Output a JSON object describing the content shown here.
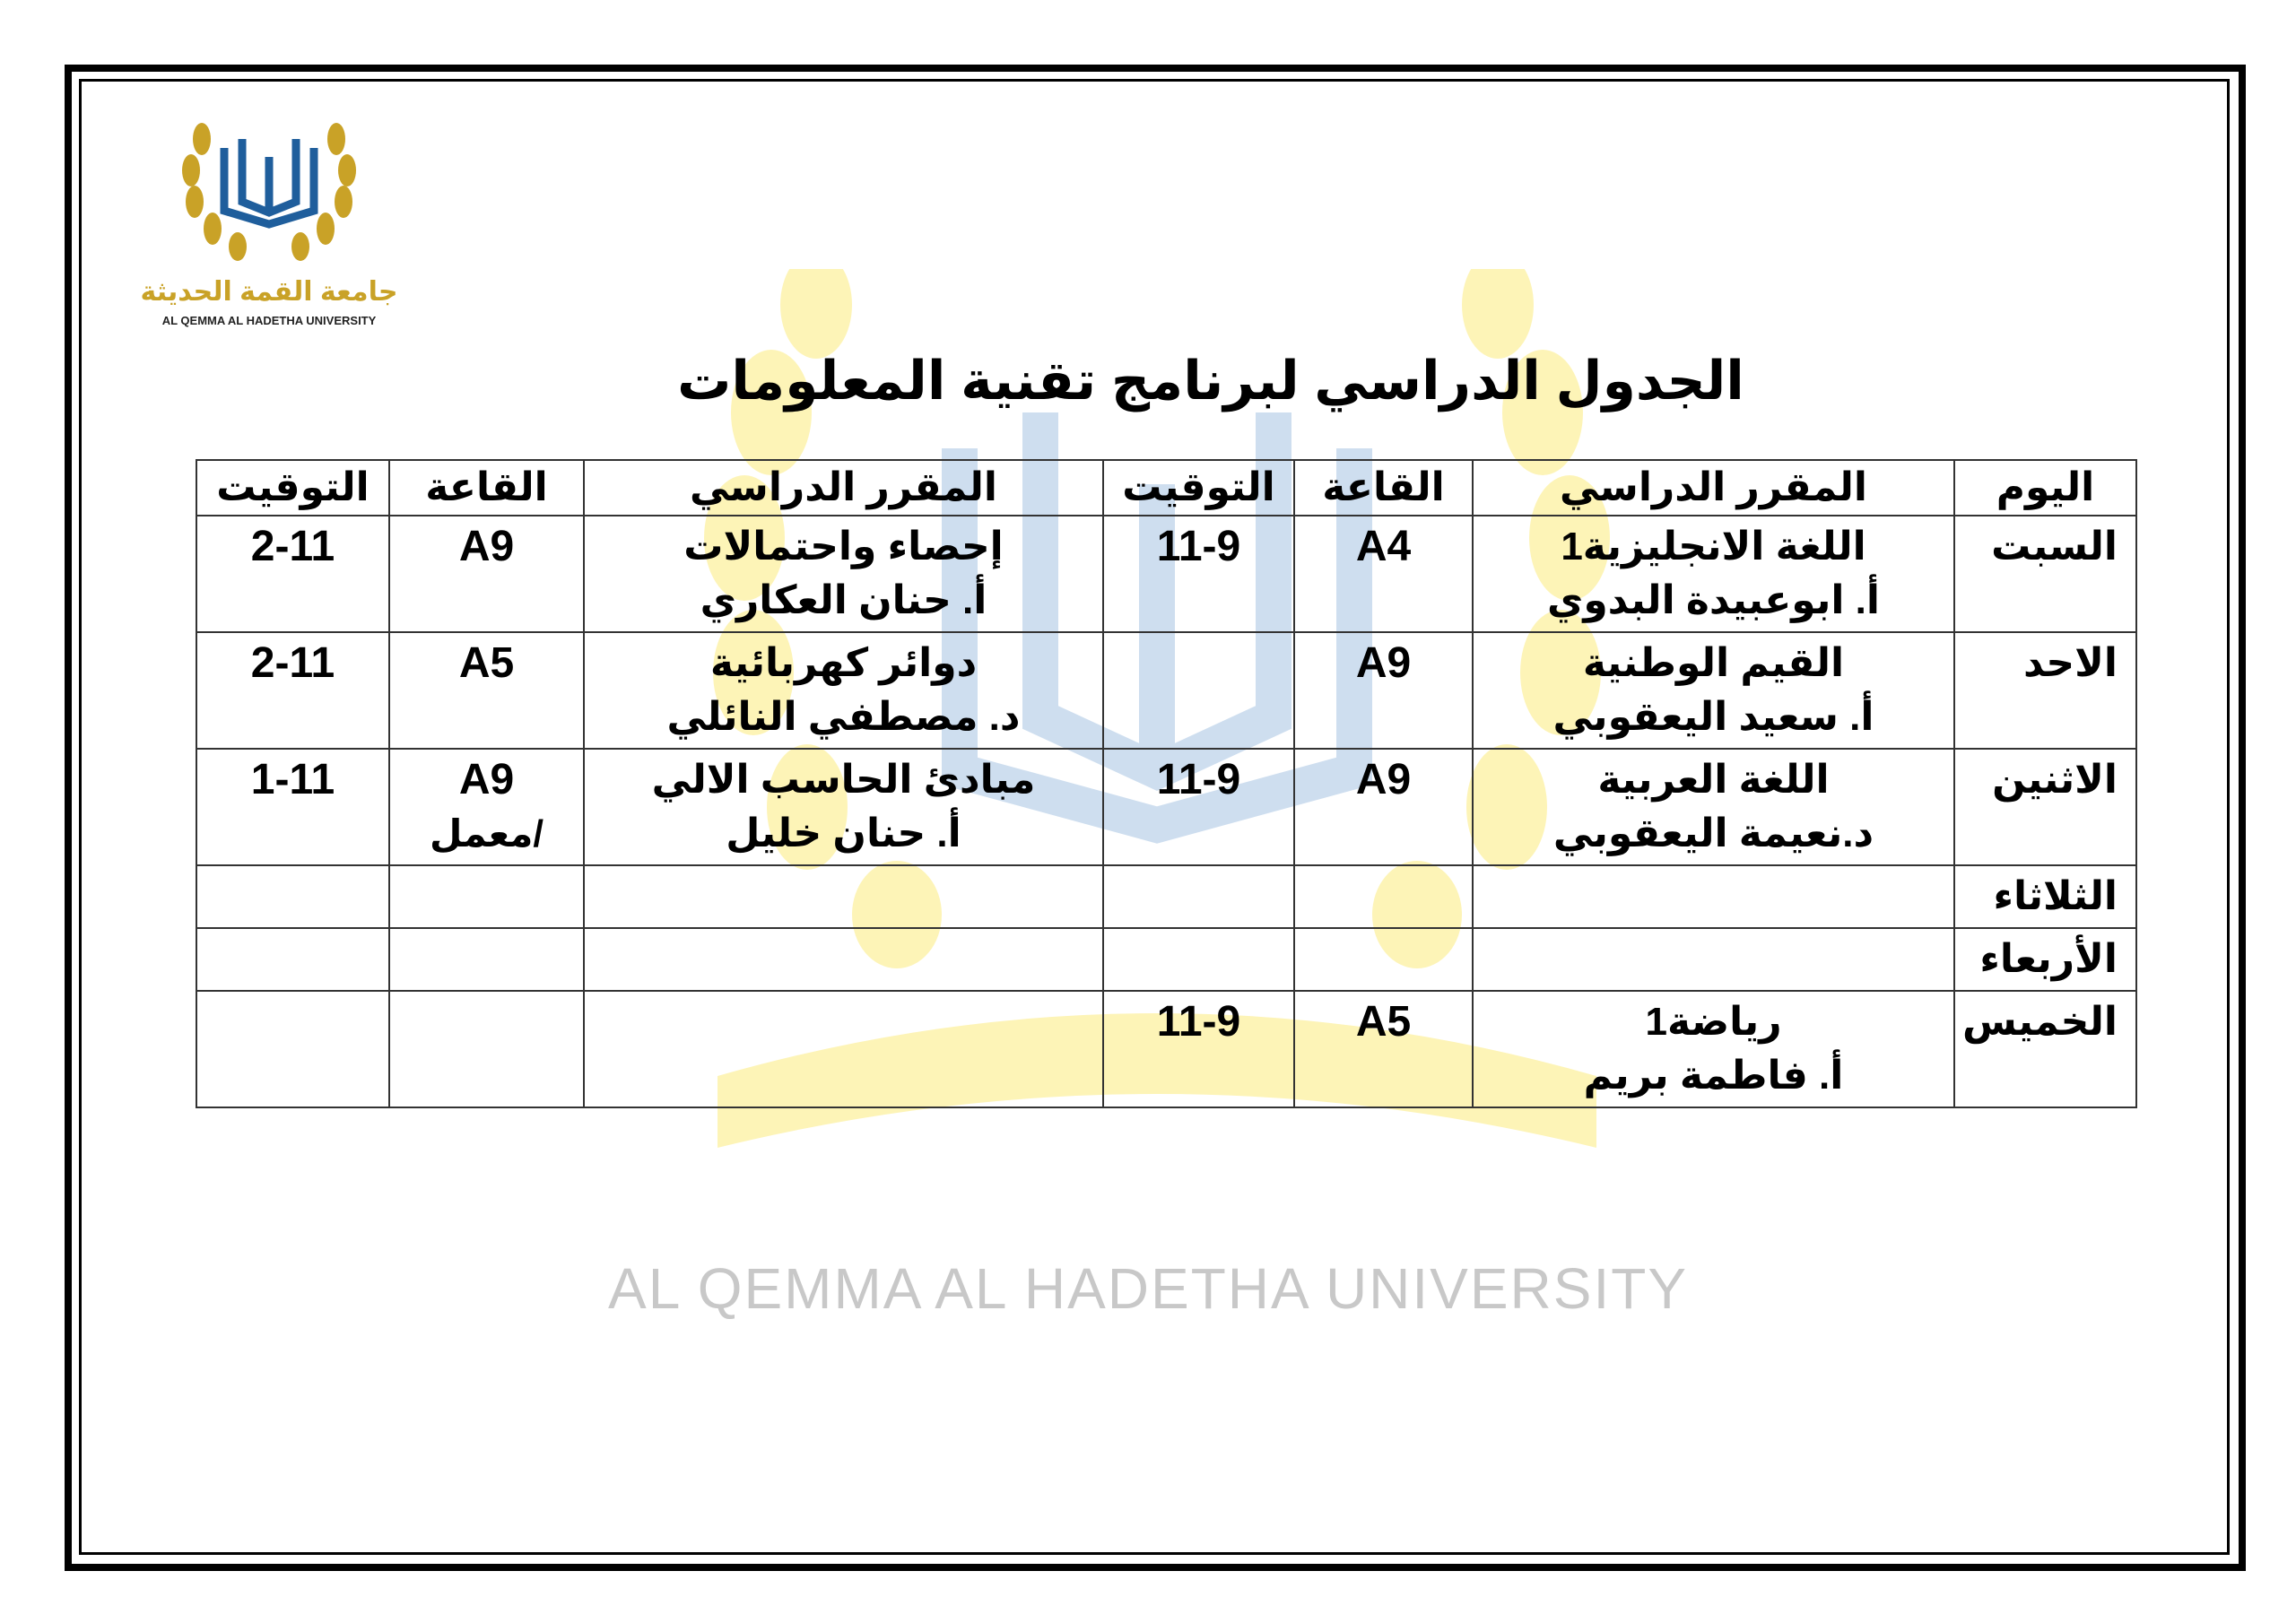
{
  "logo": {
    "arabic": "جامعة القمة الحديثة",
    "english": "AL QEMMA AL HADETHA UNIVERSITY",
    "colors": {
      "gold": "#c9a227",
      "blue": "#1f5e9c"
    }
  },
  "watermark": {
    "text": "AL QEMMA AL HADETHA UNIVERSITY",
    "colors": {
      "yellow": "#fdf3b0",
      "blue": "#c9dbee"
    }
  },
  "title": "الجدول الدراسي لبرنامج تقنية المعلومات",
  "table": {
    "headers": [
      "اليوم",
      "المقرر الدراسي",
      "القاعة",
      "التوقيت",
      "المقرر الدراسي",
      "القاعة",
      "التوقيت"
    ],
    "rows": [
      {
        "day": "السبت",
        "course1": "اللغة الانجليزية1",
        "teacher1": "أ. ابوعبيدة البدوي",
        "room1": "A4",
        "time1": "11-9",
        "course2": "إحصاء واحتمالات",
        "teacher2": "أ. حنان العكاري",
        "room2": "A9",
        "room2_note": "",
        "time2": "2-11"
      },
      {
        "day": "الاحد",
        "course1": "القيم الوطنية",
        "teacher1": "أ. سعيد اليعقوبي",
        "room1": "A9",
        "time1": "",
        "course2": "دوائر كهربائية",
        "teacher2": "د. مصطفي النائلي",
        "room2": "A5",
        "room2_note": "",
        "time2": "2-11"
      },
      {
        "day": "الاثنين",
        "course1": "اللغة العربية",
        "teacher1": "د.نعيمة اليعقوبي",
        "room1": "A9",
        "time1": "11-9",
        "course2": "مبادئ الحاسب الالي",
        "teacher2": "أ. حنان خليل",
        "room2": "A9",
        "room2_note": "/معمل",
        "time2": "1-11"
      },
      {
        "day": "الثلاثاء",
        "course1": "",
        "teacher1": "",
        "room1": "",
        "time1": "",
        "course2": "",
        "teacher2": "",
        "room2": "",
        "room2_note": "",
        "time2": ""
      },
      {
        "day": "الأربعاء",
        "course1": "",
        "teacher1": "",
        "room1": "",
        "time1": "",
        "course2": "",
        "teacher2": "",
        "room2": "",
        "room2_note": "",
        "time2": ""
      },
      {
        "day": "الخميس",
        "course1": "رياضة1",
        "teacher1": "أ. فاطمة بريم",
        "room1": "A5",
        "time1": "11-9",
        "course2": "",
        "teacher2": "",
        "room2": "",
        "room2_note": "",
        "time2": ""
      }
    ]
  }
}
